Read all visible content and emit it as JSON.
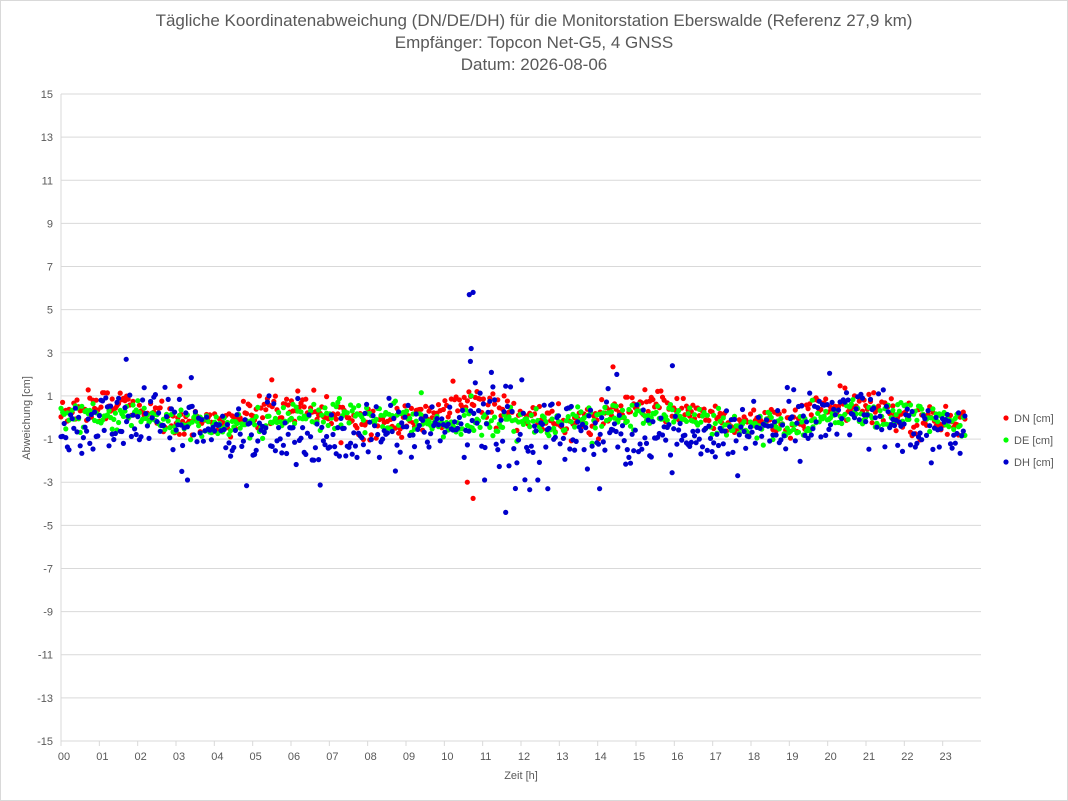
{
  "chart_data": {
    "type": "scatter",
    "title": "Tägliche Koordinatenabweichung (DN/DE/DH) für die Monitorstation Eberswalde (Referenz 27,9 km)",
    "subtitle": "Empfänger: Topcon Net-G5, 4 GNSS",
    "date_line": "Datum: 2026-08-06",
    "xlabel": "Zeit [h]",
    "ylabel": "Abweichung [cm]",
    "xlim": [
      0,
      24
    ],
    "ylim": [
      -15,
      15
    ],
    "x_ticks": [
      "00",
      "01",
      "02",
      "03",
      "04",
      "05",
      "06",
      "07",
      "08",
      "09",
      "10",
      "11",
      "12",
      "13",
      "14",
      "15",
      "16",
      "17",
      "18",
      "19",
      "20",
      "21",
      "22",
      "23"
    ],
    "y_ticks": [
      15,
      13,
      11,
      9,
      7,
      5,
      3,
      1,
      -1,
      -3,
      -5,
      -7,
      -9,
      -11,
      -13,
      -15
    ],
    "grid": true,
    "legend_position": "right",
    "series": [
      {
        "name": "DN [cm]",
        "color": "#ff0000",
        "values": []
      },
      {
        "name": "DE [cm]",
        "color": "#00ff00",
        "values": []
      },
      {
        "name": "DH [cm]",
        "color": "#0000cc",
        "values": []
      }
    ]
  }
}
